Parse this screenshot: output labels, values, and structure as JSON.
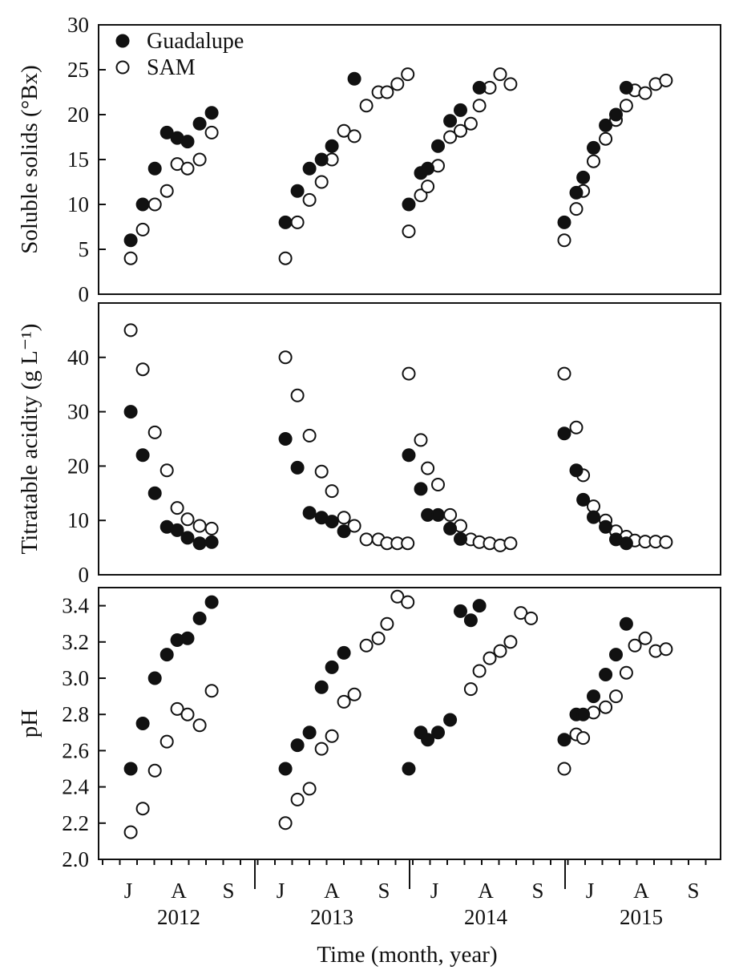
{
  "chart_data": {
    "type": "scatter",
    "xlabel": "Time (month, year)",
    "month_ticks": [
      "J",
      "A",
      "S"
    ],
    "years": [
      "2012",
      "2013",
      "2014",
      "2015"
    ],
    "legend": [
      {
        "name": "Guadalupe",
        "marker": "filled-circle",
        "color": "#111111"
      },
      {
        "name": "SAM",
        "marker": "open-circle",
        "color": "#111111"
      }
    ],
    "panels": [
      {
        "id": "soluble-solids",
        "ylabel": "Soluble solids (°Bx)",
        "ylim": [
          0,
          30
        ],
        "yticks": [
          0,
          5,
          10,
          15,
          20,
          25,
          30
        ],
        "ytick_labels": [
          "0",
          "5",
          "10",
          "15",
          "20",
          "25",
          "30"
        ],
        "series": [
          {
            "name": "Guadalupe",
            "years": [
              {
                "x": [
                  0.7,
                  1.4,
                  2.1,
                  2.8,
                  3.4,
                  4.0,
                  4.7,
                  5.4
                ],
                "y": [
                  6,
                  10,
                  14,
                  18,
                  17.4,
                  17,
                  19,
                  20.2
                ]
              },
              {
                "x": [
                  0.7,
                  1.4,
                  2.1,
                  2.8,
                  3.4,
                  4.7
                ],
                "y": [
                  8,
                  11.5,
                  14,
                  15,
                  16.5,
                  24
                ]
              },
              {
                "x": [
                  0,
                  0.7,
                  1.1,
                  1.7,
                  2.4,
                  3.0,
                  4.1
                ],
                "y": [
                  10,
                  13.5,
                  14,
                  16.5,
                  19.3,
                  20.5,
                  23
                ]
              },
              {
                "x": [
                  0,
                  0.7,
                  1.1,
                  1.7,
                  2.4,
                  3.0,
                  3.6
                ],
                "y": [
                  8,
                  11.3,
                  13,
                  16.3,
                  18.8,
                  20,
                  23
                ]
              }
            ]
          },
          {
            "name": "SAM",
            "years": [
              {
                "x": [
                  0.7,
                  1.4,
                  2.1,
                  2.8,
                  3.4,
                  4.0,
                  4.7,
                  5.4
                ],
                "y": [
                  4,
                  7.2,
                  10,
                  11.5,
                  14.5,
                  14,
                  15,
                  18
                ]
              },
              {
                "x": [
                  0.7,
                  1.4,
                  2.1,
                  2.8,
                  3.4,
                  4.1,
                  4.7,
                  5.4,
                  6.1,
                  6.6,
                  7.2,
                  7.8
                ],
                "y": [
                  4,
                  8,
                  10.5,
                  12.5,
                  15,
                  18.2,
                  17.6,
                  21,
                  22.5,
                  22.5,
                  23.4,
                  24.5
                ]
              },
              {
                "x": [
                  0,
                  0.7,
                  1.1,
                  1.7,
                  2.4,
                  3.0,
                  3.6,
                  4.1,
                  4.7,
                  5.3,
                  5.9
                ],
                "y": [
                  7,
                  11,
                  12,
                  14.3,
                  17.5,
                  18.2,
                  19,
                  21,
                  23,
                  24.5,
                  23.4
                ]
              },
              {
                "x": [
                  0,
                  0.7,
                  1.1,
                  1.7,
                  2.4,
                  3.0,
                  3.6,
                  4.1,
                  4.7,
                  5.3,
                  5.9
                ],
                "y": [
                  6,
                  9.5,
                  11.5,
                  14.8,
                  17.3,
                  19.4,
                  21,
                  22.7,
                  22.4,
                  23.4,
                  23.8
                ]
              }
            ]
          }
        ]
      },
      {
        "id": "titratable-acidity",
        "ylabel": "Titratable acidity (g L⁻¹)",
        "ylim": [
          0,
          50
        ],
        "yticks": [
          0,
          10,
          20,
          30,
          40
        ],
        "ytick_labels": [
          "0",
          "10",
          "20",
          "30",
          "40"
        ],
        "series": [
          {
            "name": "Guadalupe",
            "years": [
              {
                "x": [
                  0.7,
                  1.4,
                  2.1,
                  2.8,
                  3.4,
                  4.0,
                  4.7,
                  5.4
                ],
                "y": [
                  30,
                  22,
                  15,
                  8.8,
                  8.2,
                  6.8,
                  5.8,
                  6
                ]
              },
              {
                "x": [
                  0.7,
                  1.4,
                  2.1,
                  2.8,
                  3.4,
                  4.1
                ],
                "y": [
                  25,
                  19.7,
                  11.4,
                  10.5,
                  9.8,
                  8
                ]
              },
              {
                "x": [
                  0,
                  0.7,
                  1.1,
                  1.7,
                  2.4,
                  3.0
                ],
                "y": [
                  22,
                  15.8,
                  11,
                  11,
                  8.5,
                  6.6
                ]
              },
              {
                "x": [
                  0,
                  0.7,
                  1.1,
                  1.7,
                  2.4,
                  3.0,
                  3.6
                ],
                "y": [
                  26,
                  19.2,
                  13.8,
                  10.6,
                  8.8,
                  6.5,
                  5.8
                ]
              }
            ]
          },
          {
            "name": "SAM",
            "years": [
              {
                "x": [
                  0.7,
                  1.4,
                  2.1,
                  2.8,
                  3.4,
                  4.0,
                  4.7,
                  5.4
                ],
                "y": [
                  45,
                  37.8,
                  26.2,
                  19.2,
                  12.3,
                  10.2,
                  9,
                  8.5
                ]
              },
              {
                "x": [
                  0.7,
                  1.4,
                  2.1,
                  2.8,
                  3.4,
                  4.1,
                  4.7,
                  5.4,
                  6.1,
                  6.6,
                  7.2,
                  7.8
                ],
                "y": [
                  40,
                  33,
                  25.6,
                  19,
                  15.4,
                  10.5,
                  9,
                  6.5,
                  6.5,
                  5.8,
                  5.8,
                  5.8
                ]
              },
              {
                "x": [
                  0,
                  0.7,
                  1.1,
                  1.7,
                  2.4,
                  3.0,
                  3.6,
                  4.1,
                  4.7,
                  5.3,
                  5.9
                ],
                "y": [
                  37,
                  24.8,
                  19.6,
                  16.6,
                  11,
                  9,
                  6.5,
                  6,
                  5.8,
                  5.4,
                  5.8
                ]
              },
              {
                "x": [
                  0,
                  0.7,
                  1.1,
                  1.7,
                  2.4,
                  3.0,
                  3.6,
                  4.1,
                  4.7,
                  5.3,
                  5.9
                ],
                "y": [
                  37,
                  27.1,
                  18.3,
                  12.6,
                  10,
                  8,
                  7,
                  6.3,
                  6.1,
                  6.1,
                  6
                ]
              }
            ]
          }
        ]
      },
      {
        "id": "ph",
        "ylabel": "pH",
        "ylim": [
          2.0,
          3.5
        ],
        "yticks": [
          2.0,
          2.2,
          2.4,
          2.6,
          2.8,
          3.0,
          3.2,
          3.4
        ],
        "ytick_labels": [
          "2.0",
          "2.2",
          "2.4",
          "2.6",
          "2.8",
          "3.0",
          "3.2",
          "3.4"
        ],
        "series": [
          {
            "name": "Guadalupe",
            "years": [
              {
                "x": [
                  0.7,
                  1.4,
                  2.1,
                  2.8,
                  3.4,
                  4.0,
                  4.7,
                  5.4
                ],
                "y": [
                  2.5,
                  2.75,
                  3.0,
                  3.13,
                  3.21,
                  3.22,
                  3.33,
                  3.42
                ]
              },
              {
                "x": [
                  0.7,
                  1.4,
                  2.1,
                  2.8,
                  3.4,
                  4.1
                ],
                "y": [
                  2.5,
                  2.63,
                  2.7,
                  2.95,
                  3.06,
                  3.14
                ]
              },
              {
                "x": [
                  0,
                  0.7,
                  1.1,
                  1.7,
                  2.4,
                  3.0,
                  3.6,
                  4.1
                ],
                "y": [
                  2.5,
                  2.7,
                  2.66,
                  2.7,
                  2.77,
                  3.37,
                  3.32,
                  3.4
                ]
              },
              {
                "x": [
                  0,
                  0.7,
                  1.1,
                  1.7,
                  2.4,
                  3.0,
                  3.6
                ],
                "y": [
                  2.66,
                  2.8,
                  2.8,
                  2.9,
                  3.02,
                  3.13,
                  3.3
                ]
              }
            ]
          },
          {
            "name": "SAM",
            "years": [
              {
                "x": [
                  0.7,
                  1.4,
                  2.1,
                  2.8,
                  3.4,
                  4.0,
                  4.7,
                  5.4
                ],
                "y": [
                  2.15,
                  2.28,
                  2.49,
                  2.65,
                  2.83,
                  2.8,
                  2.74,
                  2.93
                ]
              },
              {
                "x": [
                  0.7,
                  1.4,
                  2.1,
                  2.8,
                  3.4,
                  4.1,
                  4.7,
                  5.4,
                  6.1,
                  6.6,
                  7.2,
                  7.8
                ],
                "y": [
                  2.2,
                  2.33,
                  2.39,
                  2.61,
                  2.68,
                  2.87,
                  2.91,
                  3.18,
                  3.22,
                  3.3,
                  3.45,
                  3.42
                ]
              },
              {
                "x": [
                  3.6,
                  4.1,
                  4.7,
                  5.3,
                  5.9,
                  6.5,
                  7.1
                ],
                "y": [
                  2.94,
                  3.04,
                  3.11,
                  3.15,
                  3.2,
                  3.36,
                  3.33
                ]
              },
              {
                "x": [
                  0,
                  0.7,
                  1.1,
                  1.7,
                  2.4,
                  3.0,
                  3.6,
                  4.1,
                  4.7,
                  5.3,
                  5.9
                ],
                "y": [
                  2.5,
                  2.69,
                  2.67,
                  2.81,
                  2.84,
                  2.9,
                  3.03,
                  3.18,
                  3.22,
                  3.15,
                  3.16
                ]
              }
            ]
          }
        ]
      }
    ]
  }
}
